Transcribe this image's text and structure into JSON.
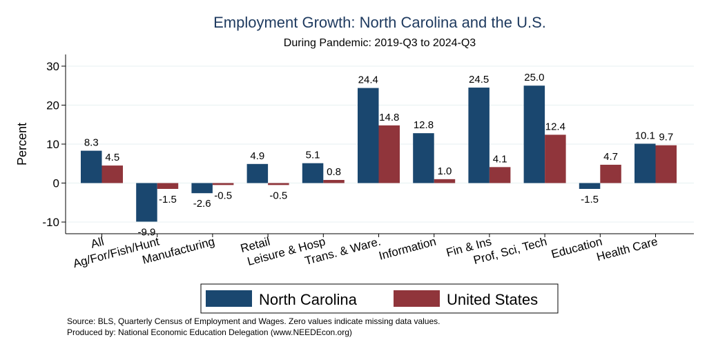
{
  "chart_data": {
    "type": "bar",
    "title": "Employment Growth: North Carolina and the U.S.",
    "subtitle": "During Pandemic: 2019-Q3 to 2024-Q3",
    "xlabel": "",
    "ylabel": "Percent",
    "ylim": [
      -13,
      33
    ],
    "yticks": [
      -10,
      0,
      10,
      20,
      30
    ],
    "grid": true,
    "legend_position": "bottom",
    "categories": [
      "All",
      "Ag/For/Fish/Hunt",
      "Manufacturing",
      "Retail",
      "Leisure & Hosp",
      "Trans. & Ware.",
      "Information",
      "Fin & Ins",
      "Prof, Sci, Tech",
      "Education",
      "Health Care"
    ],
    "series": [
      {
        "name": "North Carolina",
        "color": "#1a476f",
        "values": [
          8.3,
          -9.9,
          -2.6,
          4.9,
          5.1,
          24.4,
          12.8,
          24.5,
          25.0,
          -1.5,
          10.1
        ]
      },
      {
        "name": "United States",
        "color": "#90353b",
        "values": [
          4.5,
          -1.5,
          -0.5,
          -0.5,
          0.8,
          14.8,
          1.0,
          4.1,
          12.4,
          4.7,
          9.7
        ]
      }
    ],
    "notes": [
      "Source: BLS, Quarterly Census of Employment and Wages. Zero values indicate missing data values.",
      "Produced by: National Economic Education Delegation (www.NEEDEcon.org)"
    ]
  },
  "colors": {
    "title": "#1e3a5f",
    "grid": "#eaf2f3"
  }
}
